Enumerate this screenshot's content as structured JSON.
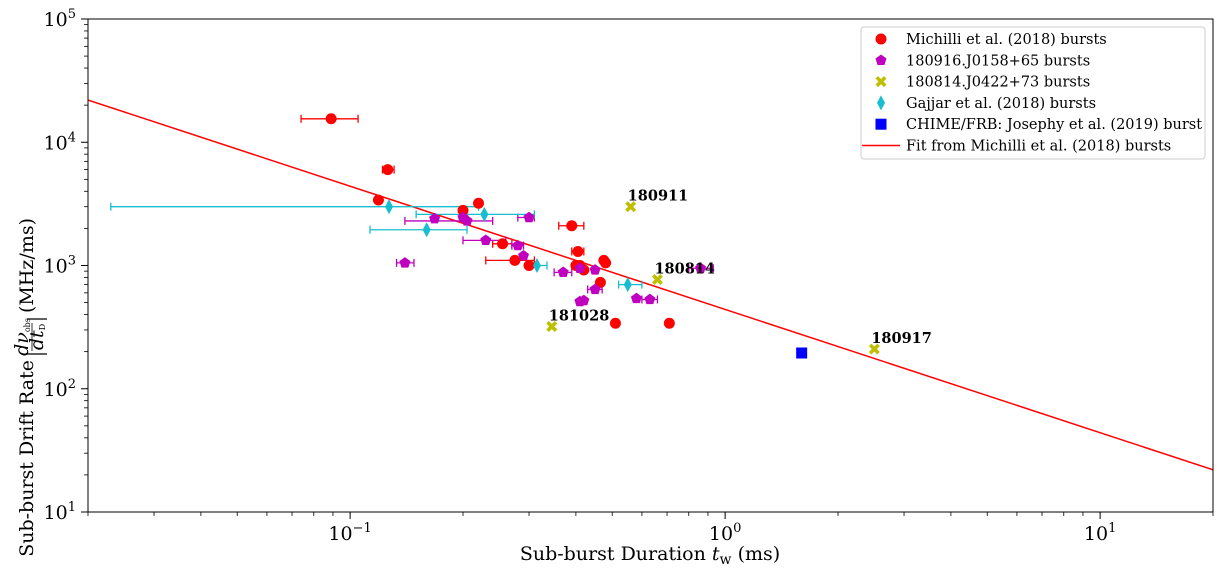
{
  "chart_data": {
    "type": "scatter",
    "xlabel": "Sub-burst Duration",
    "xlabel_symbol": "t",
    "xlabel_sub": "w",
    "xlabel_unit": "(ms)",
    "ylabel_prefix": "Sub-burst Drift Rate",
    "ylabel_num": "dν",
    "ylabel_num_sub": "obs",
    "ylabel_den": "dt",
    "ylabel_den_sub": "D",
    "ylabel_unit": "(MHz/ms)",
    "xscale": "log",
    "yscale": "log",
    "xlim": [
      0.02,
      20
    ],
    "ylim": [
      10,
      100000
    ],
    "x_ticks": [
      {
        "value": 0.1,
        "base": "10",
        "exp": "−1"
      },
      {
        "value": 1,
        "base": "10",
        "exp": "0"
      },
      {
        "value": 10,
        "base": "10",
        "exp": "1"
      }
    ],
    "y_ticks": [
      {
        "value": 10,
        "base": "10",
        "exp": "1"
      },
      {
        "value": 100,
        "base": "10",
        "exp": "2"
      },
      {
        "value": 1000,
        "base": "10",
        "exp": "3"
      },
      {
        "value": 10000,
        "base": "10",
        "exp": "4"
      },
      {
        "value": 100000,
        "base": "10",
        "exp": "5"
      }
    ],
    "legend_position": "top-right",
    "series": [
      {
        "name": "Michilli et al. (2018) bursts",
        "color": "#ff0000",
        "marker": "circle",
        "points": [
          {
            "x": 0.089,
            "y": 15500,
            "xerr": [
              0.074,
              0.105
            ]
          },
          {
            "x": 0.126,
            "y": 6000,
            "xerr": [
              0.122,
              0.131
            ]
          },
          {
            "x": 0.119,
            "y": 3400
          },
          {
            "x": 0.2,
            "y": 2800
          },
          {
            "x": 0.22,
            "y": 3200
          },
          {
            "x": 0.39,
            "y": 2100,
            "xerr": [
              0.36,
              0.42
            ]
          },
          {
            "x": 0.255,
            "y": 1500,
            "xerr": [
              0.24,
              0.27
            ]
          },
          {
            "x": 0.405,
            "y": 1300,
            "xerr": [
              0.39,
              0.42
            ]
          },
          {
            "x": 0.275,
            "y": 1100,
            "xerr": [
              0.23,
              0.31
            ]
          },
          {
            "x": 0.3,
            "y": 1000
          },
          {
            "x": 0.4,
            "y": 1000
          },
          {
            "x": 0.41,
            "y": 1000
          },
          {
            "x": 0.42,
            "y": 920
          },
          {
            "x": 0.475,
            "y": 1100
          },
          {
            "x": 0.48,
            "y": 1050
          },
          {
            "x": 0.465,
            "y": 730
          },
          {
            "x": 0.51,
            "y": 340
          },
          {
            "x": 0.71,
            "y": 340
          }
        ]
      },
      {
        "name": "180916.J0158+65 bursts",
        "color": "#bf00bf",
        "marker": "pentagon",
        "points": [
          {
            "x": 0.14,
            "y": 1050,
            "xerr": [
              0.133,
              0.148
            ]
          },
          {
            "x": 0.168,
            "y": 2400
          },
          {
            "x": 0.2,
            "y": 2450
          },
          {
            "x": 0.3,
            "y": 2450,
            "xerr": [
              0.28,
              0.31
            ]
          },
          {
            "x": 0.23,
            "y": 1600,
            "xerr": [
              0.2,
              0.26
            ]
          },
          {
            "x": 0.28,
            "y": 1450,
            "xerr": [
              0.27,
              0.29
            ]
          },
          {
            "x": 0.29,
            "y": 1200
          },
          {
            "x": 0.37,
            "y": 880,
            "xerr": [
              0.35,
              0.39
            ]
          },
          {
            "x": 0.41,
            "y": 950
          },
          {
            "x": 0.45,
            "y": 920
          },
          {
            "x": 0.41,
            "y": 510
          },
          {
            "x": 0.42,
            "y": 520
          },
          {
            "x": 0.45,
            "y": 640,
            "xerr": [
              0.43,
              0.47
            ]
          },
          {
            "x": 0.58,
            "y": 540
          },
          {
            "x": 0.63,
            "y": 530,
            "xerr": [
              0.6,
              0.66
            ]
          },
          {
            "x": 0.86,
            "y": 950,
            "xerr": [
              0.8,
              0.93
            ]
          },
          {
            "x": 0.205,
            "y": 2300,
            "xerr": [
              0.14,
              0.24
            ]
          }
        ]
      },
      {
        "name": "180814.J0422+73 bursts",
        "color": "#bfbf00",
        "marker": "x",
        "points": [
          {
            "x": 0.56,
            "y": 3000
          },
          {
            "x": 0.66,
            "y": 770
          },
          {
            "x": 0.345,
            "y": 320
          },
          {
            "x": 2.5,
            "y": 210
          }
        ]
      },
      {
        "name": "Gajjar et al. (2018) bursts",
        "color": "#17becf",
        "marker": "thin-diamond",
        "points": [
          {
            "x": 0.127,
            "y": 3000,
            "xerr": [
              0.023,
              0.22
            ]
          },
          {
            "x": 0.228,
            "y": 2600,
            "xerr": [
              0.15,
              0.31
            ]
          },
          {
            "x": 0.16,
            "y": 1950,
            "xerr": [
              0.113,
              0.205
            ]
          },
          {
            "x": 0.315,
            "y": 1000,
            "xerr": [
              0.295,
              0.335
            ]
          },
          {
            "x": 0.55,
            "y": 700,
            "xerr": [
              0.52,
              0.6
            ]
          }
        ]
      },
      {
        "name": "CHIME/FRB: Josephy et al. (2019) burst",
        "color": "#0000ff",
        "marker": "square",
        "points": [
          {
            "x": 1.6,
            "y": 195
          }
        ]
      },
      {
        "name": "Fit from Michilli et al. (2018) bursts",
        "color": "#ff0000",
        "marker": "line",
        "points": [
          {
            "x": 0.02,
            "y": 22000
          },
          {
            "x": 20,
            "y": 22
          }
        ]
      }
    ],
    "annotations": [
      {
        "text": "180911",
        "x": 0.56,
        "y": 3000
      },
      {
        "text": "180814",
        "x": 0.66,
        "y": 770
      },
      {
        "text": "181028",
        "x": 0.345,
        "y": 320
      },
      {
        "text": "180917",
        "x": 2.5,
        "y": 210
      }
    ]
  }
}
